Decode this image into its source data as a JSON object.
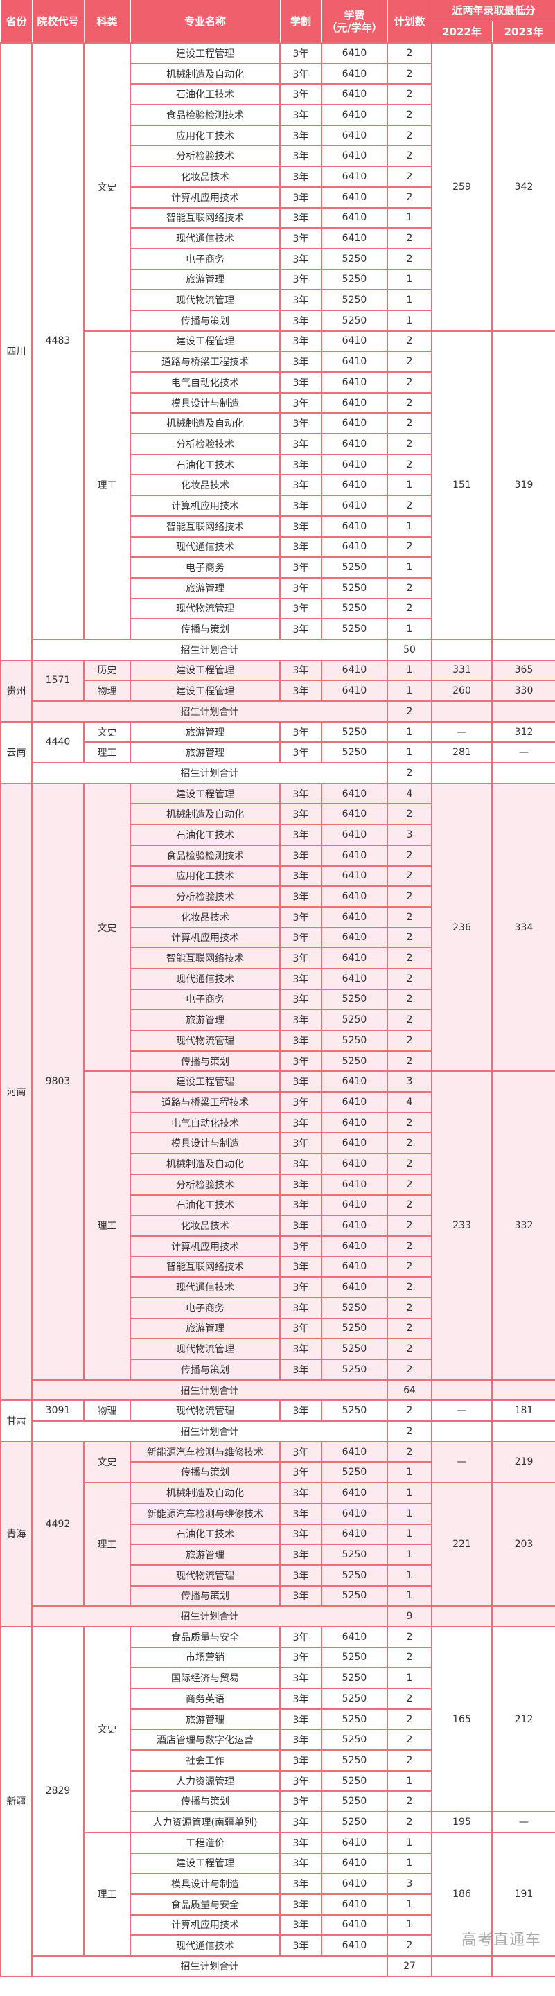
{
  "header": {
    "province": "省份",
    "code": "院校代号",
    "category": "科类",
    "major": "专业名称",
    "duration": "学制",
    "fee_line1": "学费",
    "fee_line2": "（元/学年）",
    "plan": "计划数",
    "scores": "近两年录取最低分",
    "year1": "2022年",
    "year2": "2023年"
  },
  "total_label": "招生计划合计",
  "colors": {
    "header_bg": "#ef5f6c",
    "border": "#e9707a",
    "alt_row_bg": "#fdeaef"
  },
  "watermark": "高考直通车",
  "provinces": [
    {
      "name": "四川",
      "code": "4483",
      "total": "50",
      "groups": [
        {
          "category": "文史",
          "blocks": [
            {
              "s2022": "259",
              "s2023": "342",
              "rows": [
                [
                  "建设工程管理",
                  "3年",
                  "6410",
                  "2"
                ],
                [
                  "机械制造及自动化",
                  "3年",
                  "6410",
                  "2"
                ],
                [
                  "石油化工技术",
                  "3年",
                  "6410",
                  "2"
                ],
                [
                  "食品检验检测技术",
                  "3年",
                  "6410",
                  "2"
                ],
                [
                  "应用化工技术",
                  "3年",
                  "6410",
                  "2"
                ],
                [
                  "分析检验技术",
                  "3年",
                  "6410",
                  "2"
                ],
                [
                  "化妆品技术",
                  "3年",
                  "6410",
                  "2"
                ],
                [
                  "计算机应用技术",
                  "3年",
                  "6410",
                  "2"
                ],
                [
                  "智能互联网络技术",
                  "3年",
                  "6410",
                  "1"
                ],
                [
                  "现代通信技术",
                  "3年",
                  "6410",
                  "2"
                ],
                [
                  "电子商务",
                  "3年",
                  "5250",
                  "2"
                ],
                [
                  "旅游管理",
                  "3年",
                  "5250",
                  "1"
                ],
                [
                  "现代物流管理",
                  "3年",
                  "5250",
                  "1"
                ],
                [
                  "传播与策划",
                  "3年",
                  "5250",
                  "1"
                ]
              ]
            }
          ]
        },
        {
          "category": "理工",
          "blocks": [
            {
              "s2022": "151",
              "s2023": "319",
              "rows": [
                [
                  "建设工程管理",
                  "3年",
                  "6410",
                  "2"
                ],
                [
                  "道路与桥梁工程技术",
                  "3年",
                  "6410",
                  "2"
                ],
                [
                  "电气自动化技术",
                  "3年",
                  "6410",
                  "2"
                ],
                [
                  "模具设计与制造",
                  "3年",
                  "6410",
                  "2"
                ],
                [
                  "机械制造及自动化",
                  "3年",
                  "6410",
                  "2"
                ],
                [
                  "分析检验技术",
                  "3年",
                  "6410",
                  "2"
                ],
                [
                  "石油化工技术",
                  "3年",
                  "6410",
                  "2"
                ],
                [
                  "化妆品技术",
                  "3年",
                  "6410",
                  "1"
                ],
                [
                  "计算机应用技术",
                  "3年",
                  "6410",
                  "2"
                ],
                [
                  "智能互联网络技术",
                  "3年",
                  "6410",
                  "1"
                ],
                [
                  "现代通信技术",
                  "3年",
                  "6410",
                  "2"
                ],
                [
                  "电子商务",
                  "3年",
                  "5250",
                  "1"
                ],
                [
                  "旅游管理",
                  "3年",
                  "5250",
                  "2"
                ],
                [
                  "现代物流管理",
                  "3年",
                  "5250",
                  "2"
                ],
                [
                  "传播与策划",
                  "3年",
                  "5250",
                  "1"
                ]
              ]
            }
          ]
        }
      ]
    },
    {
      "name": "贵州",
      "code": "1571",
      "total": "2",
      "groups": [
        {
          "category": "历史",
          "blocks": [
            {
              "s2022": "331",
              "s2023": "365",
              "rows": [
                [
                  "建设工程管理",
                  "3年",
                  "6410",
                  "1"
                ]
              ]
            }
          ]
        },
        {
          "category": "物理",
          "blocks": [
            {
              "s2022": "260",
              "s2023": "330",
              "rows": [
                [
                  "建设工程管理",
                  "3年",
                  "6410",
                  "1"
                ]
              ]
            }
          ]
        }
      ]
    },
    {
      "name": "云南",
      "code": "4440",
      "total": "2",
      "groups": [
        {
          "category": "文史",
          "blocks": [
            {
              "s2022": "—",
              "s2023": "312",
              "rows": [
                [
                  "旅游管理",
                  "3年",
                  "5250",
                  "1"
                ]
              ]
            }
          ]
        },
        {
          "category": "理工",
          "blocks": [
            {
              "s2022": "281",
              "s2023": "—",
              "rows": [
                [
                  "旅游管理",
                  "3年",
                  "5250",
                  "1"
                ]
              ]
            }
          ]
        }
      ]
    },
    {
      "name": "河南",
      "code": "9803",
      "total": "64",
      "groups": [
        {
          "category": "文史",
          "blocks": [
            {
              "s2022": "236",
              "s2023": "334",
              "rows": [
                [
                  "建设工程管理",
                  "3年",
                  "6410",
                  "4"
                ],
                [
                  "机械制造及自动化",
                  "3年",
                  "6410",
                  "2"
                ],
                [
                  "石油化工技术",
                  "3年",
                  "6410",
                  "3"
                ],
                [
                  "食品检验检测技术",
                  "3年",
                  "6410",
                  "2"
                ],
                [
                  "应用化工技术",
                  "3年",
                  "6410",
                  "2"
                ],
                [
                  "分析检验技术",
                  "3年",
                  "6410",
                  "2"
                ],
                [
                  "化妆品技术",
                  "3年",
                  "6410",
                  "2"
                ],
                [
                  "计算机应用技术",
                  "3年",
                  "6410",
                  "2"
                ],
                [
                  "智能互联网络技术",
                  "3年",
                  "6410",
                  "2"
                ],
                [
                  "现代通信技术",
                  "3年",
                  "6410",
                  "2"
                ],
                [
                  "电子商务",
                  "3年",
                  "5250",
                  "2"
                ],
                [
                  "旅游管理",
                  "3年",
                  "5250",
                  "2"
                ],
                [
                  "现代物流管理",
                  "3年",
                  "5250",
                  "2"
                ],
                [
                  "传播与策划",
                  "3年",
                  "5250",
                  "2"
                ]
              ]
            }
          ]
        },
        {
          "category": "理工",
          "blocks": [
            {
              "s2022": "233",
              "s2023": "332",
              "rows": [
                [
                  "建设工程管理",
                  "3年",
                  "6410",
                  "3"
                ],
                [
                  "道路与桥梁工程技术",
                  "3年",
                  "6410",
                  "4"
                ],
                [
                  "电气自动化技术",
                  "3年",
                  "6410",
                  "2"
                ],
                [
                  "模具设计与制造",
                  "3年",
                  "6410",
                  "2"
                ],
                [
                  "机械制造及自动化",
                  "3年",
                  "6410",
                  "2"
                ],
                [
                  "分析检验技术",
                  "3年",
                  "6410",
                  "2"
                ],
                [
                  "石油化工技术",
                  "3年",
                  "6410",
                  "2"
                ],
                [
                  "化妆品技术",
                  "3年",
                  "6410",
                  "2"
                ],
                [
                  "计算机应用技术",
                  "3年",
                  "6410",
                  "2"
                ],
                [
                  "智能互联网络技术",
                  "3年",
                  "6410",
                  "2"
                ],
                [
                  "现代通信技术",
                  "3年",
                  "6410",
                  "2"
                ],
                [
                  "电子商务",
                  "3年",
                  "5250",
                  "2"
                ],
                [
                  "旅游管理",
                  "3年",
                  "5250",
                  "2"
                ],
                [
                  "现代物流管理",
                  "3年",
                  "5250",
                  "2"
                ],
                [
                  "传播与策划",
                  "3年",
                  "5250",
                  "2"
                ]
              ]
            }
          ]
        }
      ]
    },
    {
      "name": "甘肃",
      "code": "3091",
      "total": "2",
      "groups": [
        {
          "category": "物理",
          "blocks": [
            {
              "s2022": "—",
              "s2023": "181",
              "rows": [
                [
                  "现代物流管理",
                  "3年",
                  "5250",
                  "2"
                ]
              ]
            }
          ]
        }
      ]
    },
    {
      "name": "青海",
      "code": "4492",
      "total": "9",
      "groups": [
        {
          "category": "文史",
          "blocks": [
            {
              "s2022": "—",
              "s2023": "219",
              "rows": [
                [
                  "新能源汽车检测与维修技术",
                  "3年",
                  "6410",
                  "2"
                ],
                [
                  "传播与策划",
                  "3年",
                  "5250",
                  "1"
                ]
              ]
            }
          ]
        },
        {
          "category": "理工",
          "blocks": [
            {
              "s2022": "221",
              "s2023": "203",
              "rows": [
                [
                  "机械制造及自动化",
                  "3年",
                  "6410",
                  "1"
                ],
                [
                  "新能源汽车检测与维修技术",
                  "3年",
                  "6410",
                  "1"
                ],
                [
                  "石油化工技术",
                  "3年",
                  "6410",
                  "1"
                ],
                [
                  "旅游管理",
                  "3年",
                  "5250",
                  "1"
                ],
                [
                  "现代物流管理",
                  "3年",
                  "5250",
                  "1"
                ],
                [
                  "传播与策划",
                  "3年",
                  "5250",
                  "1"
                ]
              ]
            }
          ]
        }
      ]
    },
    {
      "name": "新疆",
      "code": "2829",
      "total": "27",
      "groups": [
        {
          "category": "文史",
          "blocks": [
            {
              "s2022": "165",
              "s2023": "212",
              "rows": [
                [
                  "食品质量与安全",
                  "3年",
                  "6410",
                  "2"
                ],
                [
                  "市场营销",
                  "3年",
                  "5250",
                  "2"
                ],
                [
                  "国际经济与贸易",
                  "3年",
                  "5250",
                  "1"
                ],
                [
                  "商务英语",
                  "3年",
                  "5250",
                  "2"
                ],
                [
                  "旅游管理",
                  "3年",
                  "5250",
                  "2"
                ],
                [
                  "酒店管理与数字化运营",
                  "3年",
                  "5250",
                  "2"
                ],
                [
                  "社会工作",
                  "3年",
                  "5250",
                  "2"
                ],
                [
                  "人力资源管理",
                  "3年",
                  "5250",
                  "1"
                ],
                [
                  "传播与策划",
                  "3年",
                  "5250",
                  "2"
                ]
              ]
            },
            {
              "s2022": "195",
              "s2023": "—",
              "rows": [
                [
                  "人力资源管理(南疆单列)",
                  "3年",
                  "5250",
                  "2"
                ]
              ]
            }
          ]
        },
        {
          "category": "理工",
          "blocks": [
            {
              "s2022": "186",
              "s2023": "191",
              "rows": [
                [
                  "工程造价",
                  "3年",
                  "6410",
                  "1"
                ],
                [
                  "建设工程管理",
                  "3年",
                  "6410",
                  "1"
                ],
                [
                  "模具设计与制造",
                  "3年",
                  "6410",
                  "3"
                ],
                [
                  "食品质量与安全",
                  "3年",
                  "6410",
                  "1"
                ],
                [
                  "计算机应用技术",
                  "3年",
                  "6410",
                  "1"
                ],
                [
                  "现代通信技术",
                  "3年",
                  "6410",
                  "2"
                ]
              ]
            }
          ]
        }
      ]
    }
  ]
}
